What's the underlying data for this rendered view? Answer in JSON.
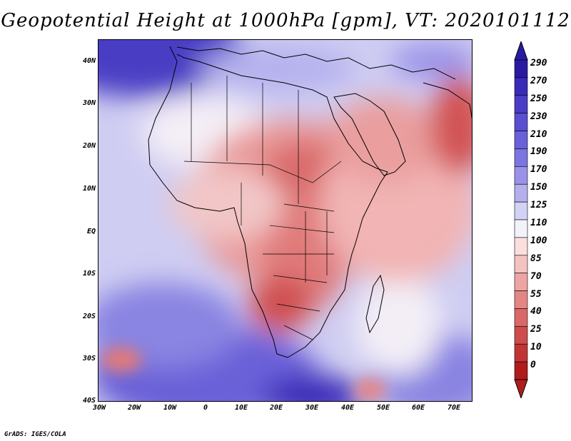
{
  "title": "Geopotential Height at 1000hPa [gpm], VT: 2020101112",
  "credit": "GrADS: IGES/COLA",
  "axes": {
    "y_labels": [
      "40N",
      "30N",
      "20N",
      "10N",
      "EQ",
      "10S",
      "20S",
      "30S",
      "40S"
    ],
    "x_labels": [
      "30W",
      "20W",
      "10W",
      "0",
      "10E",
      "20E",
      "30E",
      "40E",
      "50E",
      "60E",
      "70E"
    ]
  },
  "colorbar": {
    "levels": [
      "290",
      "270",
      "250",
      "230",
      "210",
      "190",
      "170",
      "150",
      "125",
      "110",
      "100",
      "85",
      "70",
      "55",
      "40",
      "25",
      "10",
      "0"
    ],
    "colors": [
      "#2a1aa3",
      "#3a2ab8",
      "#4b3cc8",
      "#5a4ed2",
      "#6a60da",
      "#7c74e0",
      "#9a92e8",
      "#b4b0ee",
      "#d2d2f6",
      "#f2f2fa",
      "#fbdede",
      "#f5c2c2",
      "#eea4a4",
      "#e48686",
      "#da6868",
      "#cf4c4c",
      "#c23434",
      "#b01c1c"
    ]
  },
  "regions": {
    "high_pressure": [
      "North Atlantic",
      "South Atlantic",
      "Southern Indian Ocean",
      "Mediterranean"
    ],
    "low_pressure": [
      "Sahara and Sahel",
      "Central Africa",
      "Southern Africa",
      "Arabian Peninsula",
      "Northwest India"
    ]
  }
}
